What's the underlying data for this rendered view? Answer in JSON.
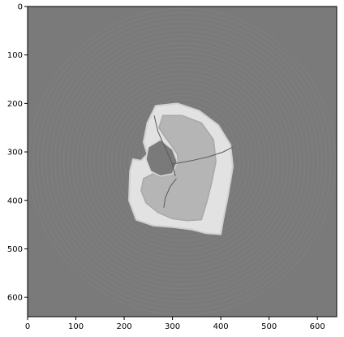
{
  "chart_data": {
    "type": "heatmap",
    "title": "",
    "xlabel": "",
    "ylabel": "",
    "xlim": [
      0,
      640
    ],
    "ylim": [
      640,
      0
    ],
    "xticks": [
      0,
      100,
      200,
      300,
      400,
      500,
      600
    ],
    "yticks": [
      0,
      100,
      200,
      300,
      400,
      500,
      600
    ],
    "background_color": "#7a7a7a",
    "outer_ring_radius": 325,
    "center": [
      320,
      320
    ],
    "tissue": {
      "outer_shell": [
        [
          265,
          205
        ],
        [
          310,
          200
        ],
        [
          355,
          215
        ],
        [
          395,
          245
        ],
        [
          420,
          285
        ],
        [
          425,
          330
        ],
        [
          415,
          390
        ],
        [
          405,
          440
        ],
        [
          400,
          470
        ],
        [
          370,
          468
        ],
        [
          340,
          460
        ],
        [
          300,
          455
        ],
        [
          260,
          452
        ],
        [
          225,
          440
        ],
        [
          210,
          400
        ],
        [
          212,
          340
        ],
        [
          218,
          315
        ],
        [
          235,
          318
        ],
        [
          248,
          305
        ],
        [
          240,
          280
        ],
        [
          248,
          240
        ]
      ],
      "inner_layer": [
        [
          280,
          225
        ],
        [
          320,
          225
        ],
        [
          360,
          240
        ],
        [
          385,
          275
        ],
        [
          390,
          320
        ],
        [
          382,
          360
        ],
        [
          372,
          400
        ],
        [
          360,
          440
        ],
        [
          330,
          442
        ],
        [
          300,
          438
        ],
        [
          270,
          425
        ],
        [
          245,
          405
        ],
        [
          235,
          380
        ],
        [
          240,
          355
        ],
        [
          260,
          345
        ],
        [
          290,
          340
        ],
        [
          312,
          322
        ],
        [
          310,
          305
        ],
        [
          300,
          290
        ],
        [
          285,
          270
        ],
        [
          272,
          250
        ]
      ],
      "cavity": [
        [
          250,
          290
        ],
        [
          275,
          275
        ],
        [
          300,
          295
        ],
        [
          310,
          320
        ],
        [
          300,
          345
        ],
        [
          275,
          350
        ],
        [
          255,
          340
        ],
        [
          245,
          315
        ]
      ],
      "cracks": [
        [
          [
            262,
            225
          ],
          [
            270,
            258
          ],
          [
            285,
            292
          ],
          [
            298,
            320
          ],
          [
            306,
            350
          ]
        ],
        [
          [
            300,
            325
          ],
          [
            340,
            318
          ],
          [
            375,
            310
          ],
          [
            405,
            300
          ],
          [
            425,
            290
          ]
        ],
        [
          [
            308,
            355
          ],
          [
            295,
            372
          ],
          [
            285,
            395
          ],
          [
            282,
            415
          ]
        ]
      ]
    }
  }
}
